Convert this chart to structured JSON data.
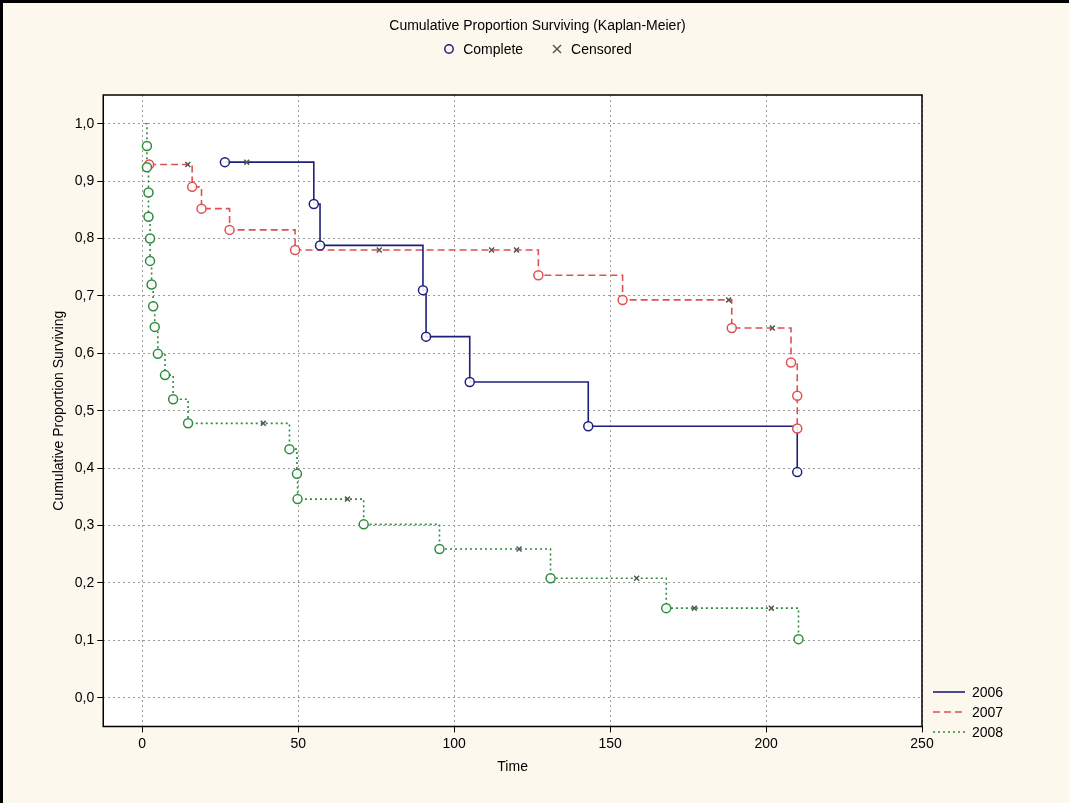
{
  "chart_data": {
    "type": "step",
    "title": "Cumulative Proportion Surviving (Kaplan-Meier)",
    "xlabel": "Time",
    "ylabel": "Cumulative Proportion Surviving",
    "xlim": [
      -12.5,
      250
    ],
    "xticks": [
      0,
      50,
      100,
      150,
      200,
      250
    ],
    "ylim": [
      -0.05,
      1.05
    ],
    "yticks": [
      {
        "value": 0,
        "label": "0,0"
      },
      {
        "value": 0.1,
        "label": "0,1"
      },
      {
        "value": 0.2,
        "label": "0,2"
      },
      {
        "value": 0.3,
        "label": "0,3"
      },
      {
        "value": 0.4,
        "label": "0,4"
      },
      {
        "value": 0.5,
        "label": "0,5"
      },
      {
        "value": 0.6,
        "label": "0,6"
      },
      {
        "value": 0.7,
        "label": "0,7"
      },
      {
        "value": 0.8,
        "label": "0,8"
      },
      {
        "value": 0.9,
        "label": "0,9"
      },
      {
        "value": 1,
        "label": "1,0"
      }
    ],
    "grid": true,
    "legend": "right",
    "series": [
      {
        "name": "2006",
        "color": "#1f1f7a",
        "line_style": "solid",
        "marker": "none",
        "x": [
          26.5,
          55,
          57,
          90,
          91,
          105,
          143,
          210
        ],
        "values": [
          0.933,
          0.86,
          0.788,
          0.71,
          0.629,
          0.55,
          0.473,
          0.393
        ]
      },
      {
        "name": "2007",
        "color": "#e05050",
        "line_style": "dashed",
        "marker": "none",
        "x": [
          2.2,
          16,
          19,
          28,
          49,
          127,
          154,
          189,
          208,
          210,
          210
        ],
        "values": [
          0.929,
          0.89,
          0.852,
          0.815,
          0.78,
          0.736,
          0.693,
          0.644,
          0.584,
          0.526,
          0.469
        ]
      },
      {
        "name": "2008",
        "color": "#2e8b3e",
        "line_style": "dotted",
        "marker": "none",
        "x": [
          1,
          1.5,
          1.5,
          2,
          2,
          2.5,
          2.5,
          3,
          3.5,
          4,
          5,
          7.3,
          9.9,
          14.7,
          47.2,
          49.6,
          49.8,
          71,
          95.3,
          130.9,
          168,
          210.4
        ],
        "values": [
          1,
          0.961,
          0.924,
          0.88,
          0.838,
          0.8,
          0.761,
          0.72,
          0.682,
          0.646,
          0.599,
          0.562,
          0.52,
          0.478,
          0.433,
          0.39,
          0.346,
          0.302,
          0.259,
          0.208,
          0.156,
          0.102
        ]
      },
      {
        "type": "scatter",
        "name": "Complete",
        "color": "#1f1f7a",
        "marker": "circle",
        "x": [
          26.5,
          55,
          57,
          90,
          91,
          105,
          143,
          210,
          2.2,
          16,
          19,
          28,
          49,
          127,
          154,
          189,
          208,
          210,
          210,
          1.5,
          1.5,
          2,
          2,
          2.5,
          2.5,
          3,
          3.5,
          4,
          5,
          7.3,
          9.9,
          14.7,
          47.2,
          49.6,
          49.8,
          71,
          95.3,
          130.9,
          168,
          210.4
        ],
        "values": [
          0.933,
          0.86,
          0.788,
          0.71,
          0.629,
          0.55,
          0.473,
          0.393,
          0.929,
          0.89,
          0.852,
          0.815,
          0.78,
          0.736,
          0.693,
          0.644,
          0.584,
          0.526,
          0.469,
          0.961,
          0.924,
          0.88,
          0.838,
          0.8,
          0.761,
          0.72,
          0.682,
          0.646,
          0.599,
          0.562,
          0.52,
          0.478,
          0.433,
          0.39,
          0.346,
          0.302,
          0.259,
          0.208,
          0.156,
          0.102
        ],
        "colors": [
          "#1f1f7a",
          "#1f1f7a",
          "#1f1f7a",
          "#1f1f7a",
          "#1f1f7a",
          "#1f1f7a",
          "#1f1f7a",
          "#1f1f7a",
          "#e05050",
          "#e05050",
          "#e05050",
          "#e05050",
          "#e05050",
          "#e05050",
          "#e05050",
          "#e05050",
          "#e05050",
          "#e05050",
          "#e05050",
          "#2e8b3e",
          "#2e8b3e",
          "#2e8b3e",
          "#2e8b3e",
          "#2e8b3e",
          "#2e8b3e",
          "#2e8b3e",
          "#2e8b3e",
          "#2e8b3e",
          "#2e8b3e",
          "#2e8b3e",
          "#2e8b3e",
          "#2e8b3e",
          "#2e8b3e",
          "#2e8b3e",
          "#2e8b3e",
          "#2e8b3e",
          "#2e8b3e",
          "#2e8b3e",
          "#2e8b3e",
          "#2e8b3e"
        ]
      },
      {
        "type": "scatter",
        "name": "Censored",
        "color": "#555555",
        "marker": "cross",
        "x": [
          33.5,
          14.6,
          76,
          112,
          120,
          188,
          202,
          38.8,
          65.8,
          120.8,
          158.5,
          177,
          201.7
        ],
        "values": [
          0.933,
          0.929,
          0.78,
          0.78,
          0.78,
          0.693,
          0.644,
          0.478,
          0.346,
          0.259,
          0.208,
          0.156,
          0.156
        ]
      }
    ]
  }
}
